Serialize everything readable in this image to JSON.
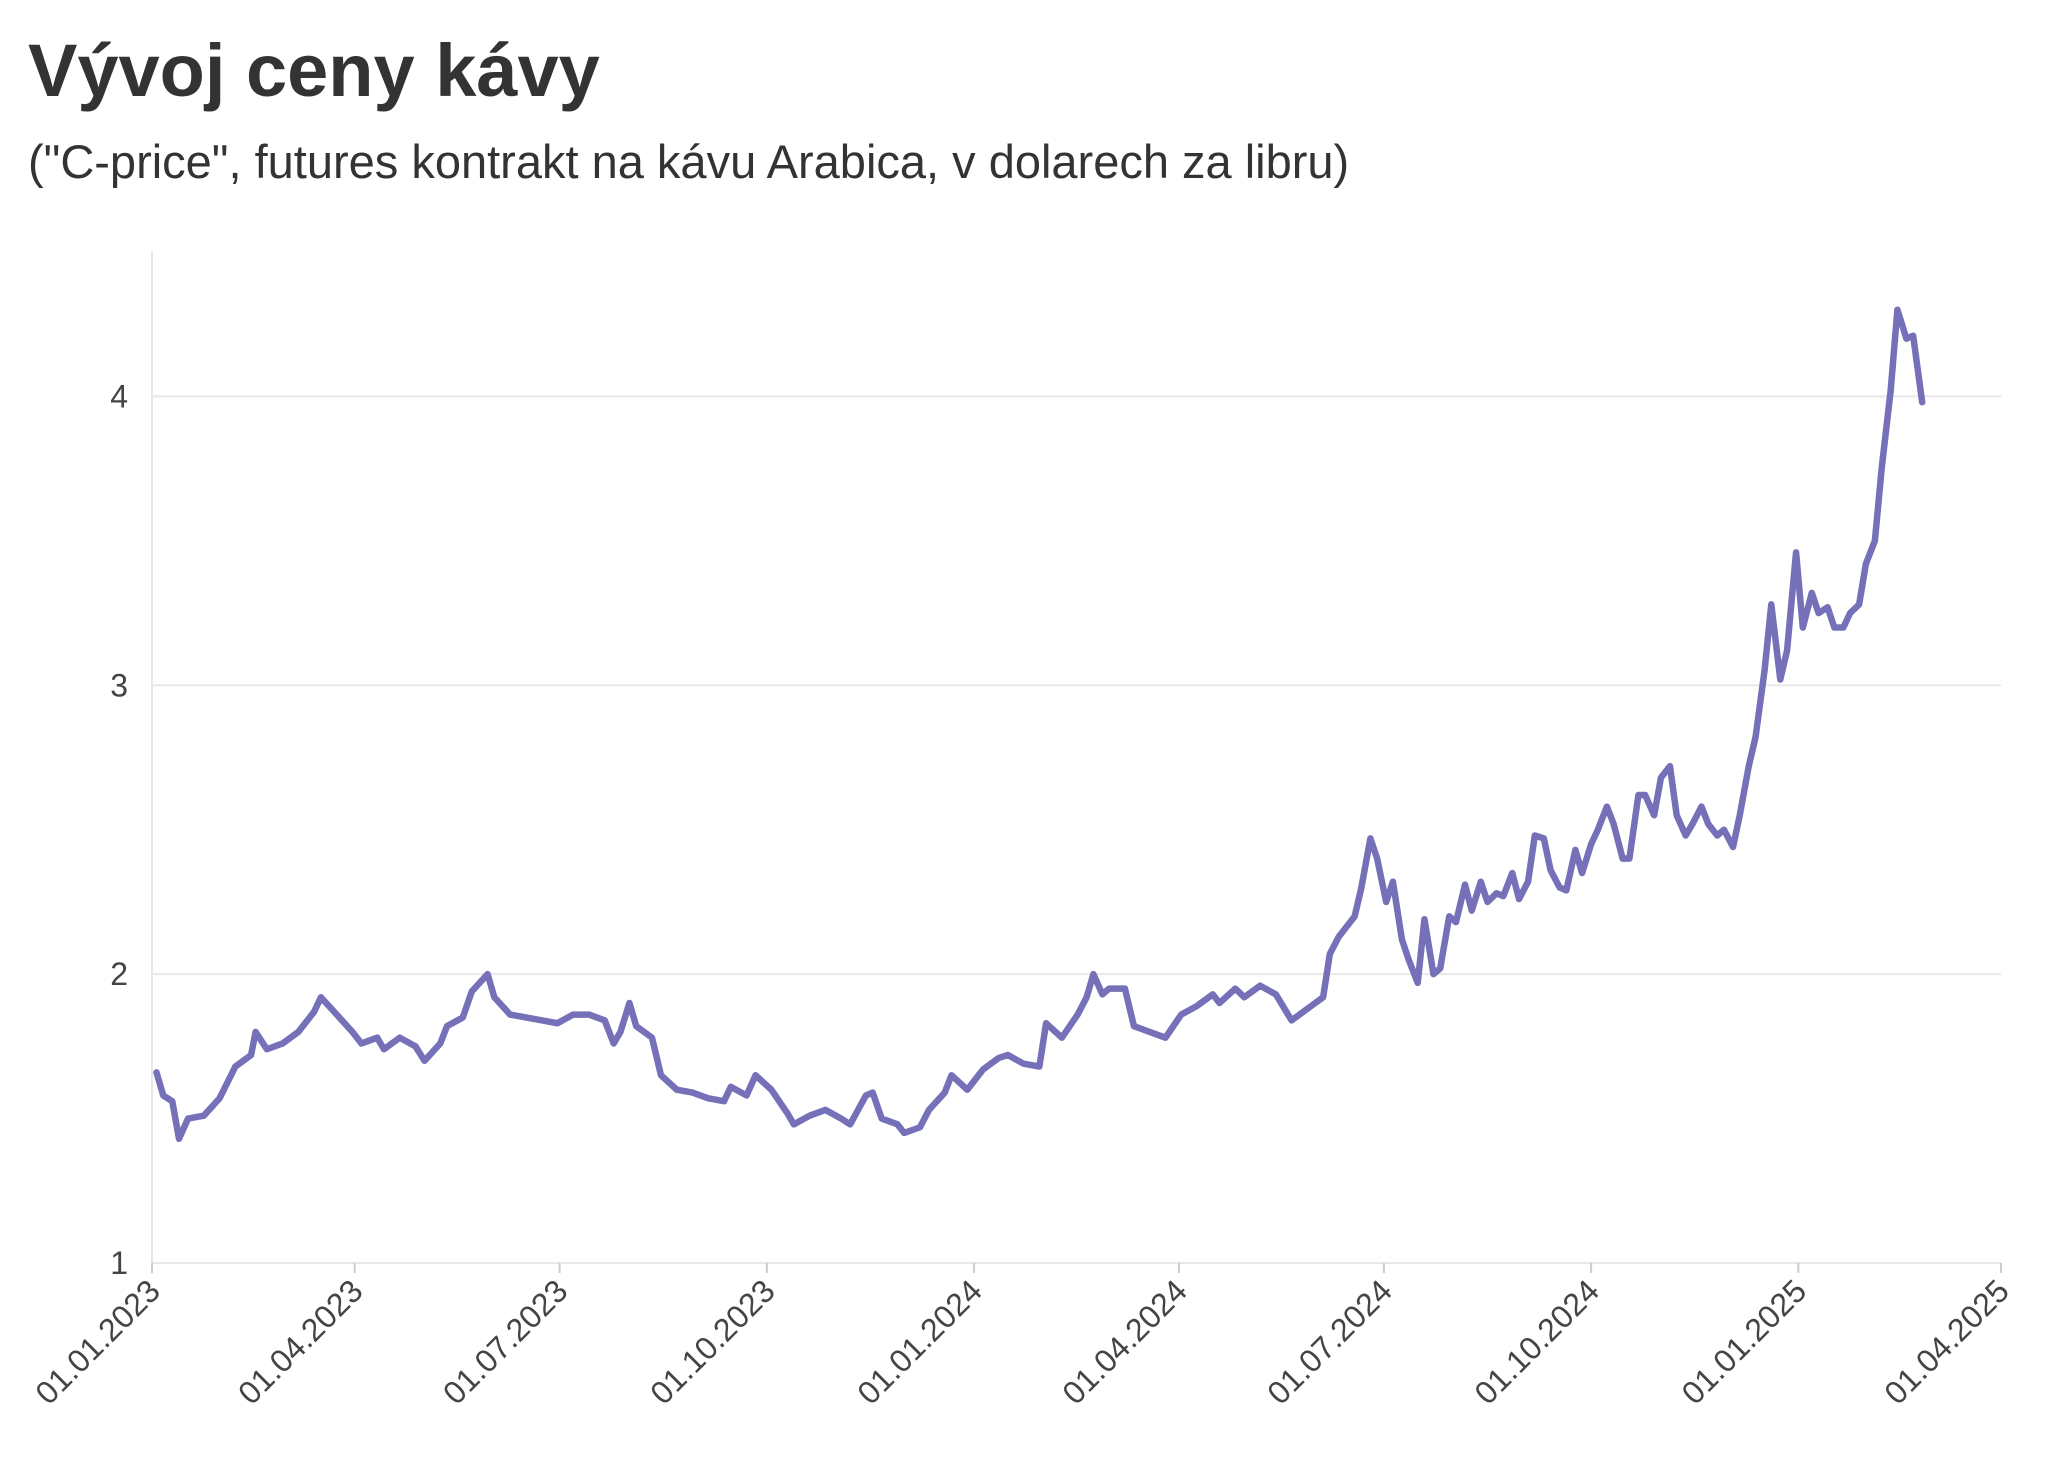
{
  "chart_data": {
    "type": "line",
    "title": "Vývoj ceny kávy",
    "subtitle": "(\"C-price\", futures kontrakt na kávu Arabica, v dolarech za libru)",
    "x": [
      "2023-01-03",
      "2023-01-06",
      "2023-01-10",
      "2023-01-13",
      "2023-01-17",
      "2023-01-24",
      "2023-01-31",
      "2023-02-07",
      "2023-02-14",
      "2023-02-16",
      "2023-02-21",
      "2023-02-28",
      "2023-03-07",
      "2023-03-14",
      "2023-03-17",
      "2023-03-24",
      "2023-03-31",
      "2023-04-04",
      "2023-04-11",
      "2023-04-14",
      "2023-04-21",
      "2023-04-28",
      "2023-05-02",
      "2023-05-09",
      "2023-05-12",
      "2023-05-19",
      "2023-05-23",
      "2023-05-30",
      "2023-06-02",
      "2023-06-09",
      "2023-06-16",
      "2023-06-23",
      "2023-06-30",
      "2023-07-07",
      "2023-07-14",
      "2023-07-21",
      "2023-07-25",
      "2023-07-28",
      "2023-08-01",
      "2023-08-04",
      "2023-08-11",
      "2023-08-15",
      "2023-08-22",
      "2023-08-29",
      "2023-09-05",
      "2023-09-12",
      "2023-09-15",
      "2023-09-22",
      "2023-09-26",
      "2023-10-03",
      "2023-10-10",
      "2023-10-13",
      "2023-10-20",
      "2023-10-27",
      "2023-11-03",
      "2023-11-07",
      "2023-11-14",
      "2023-11-17",
      "2023-11-21",
      "2023-11-28",
      "2023-12-01",
      "2023-12-08",
      "2023-12-12",
      "2023-12-19",
      "2023-12-22",
      "2023-12-29",
      "2024-01-05",
      "2024-01-12",
      "2024-01-16",
      "2024-01-23",
      "2024-01-30",
      "2024-02-02",
      "2024-02-09",
      "2024-02-16",
      "2024-02-20",
      "2024-02-23",
      "2024-02-27",
      "2024-03-01",
      "2024-03-08",
      "2024-03-12",
      "2024-03-19",
      "2024-03-26",
      "2024-04-02",
      "2024-04-09",
      "2024-04-16",
      "2024-04-19",
      "2024-04-26",
      "2024-04-30",
      "2024-05-07",
      "2024-05-14",
      "2024-05-21",
      "2024-05-28",
      "2024-06-04",
      "2024-06-07",
      "2024-06-11",
      "2024-06-18",
      "2024-06-21",
      "2024-06-25",
      "2024-06-28",
      "2024-07-02",
      "2024-07-05",
      "2024-07-09",
      "2024-07-12",
      "2024-07-16",
      "2024-07-19",
      "2024-07-23",
      "2024-07-26",
      "2024-07-30",
      "2024-08-02",
      "2024-08-06",
      "2024-08-09",
      "2024-08-13",
      "2024-08-16",
      "2024-08-20",
      "2024-08-23",
      "2024-08-27",
      "2024-08-30",
      "2024-09-03",
      "2024-09-06",
      "2024-09-10",
      "2024-09-13",
      "2024-09-17",
      "2024-09-20",
      "2024-09-24",
      "2024-09-27",
      "2024-10-01",
      "2024-10-04",
      "2024-10-08",
      "2024-10-11",
      "2024-10-15",
      "2024-10-18",
      "2024-10-22",
      "2024-10-25",
      "2024-10-29",
      "2024-11-01",
      "2024-11-05",
      "2024-11-08",
      "2024-11-12",
      "2024-11-15",
      "2024-11-19",
      "2024-11-22",
      "2024-11-26",
      "2024-11-29",
      "2024-12-03",
      "2024-12-06",
      "2024-12-10",
      "2024-12-13",
      "2024-12-17",
      "2024-12-20",
      "2024-12-24",
      "2024-12-27",
      "2024-12-31",
      "2025-01-03",
      "2025-01-07",
      "2025-01-10",
      "2025-01-14",
      "2025-01-17",
      "2025-01-21",
      "2025-01-24",
      "2025-01-28",
      "2025-01-31",
      "2025-02-04",
      "2025-02-07",
      "2025-02-11",
      "2025-02-14",
      "2025-02-18",
      "2025-02-21",
      "2025-02-25"
    ],
    "series": [
      {
        "color": "#7570b8",
        "values": [
          1.66,
          1.58,
          1.56,
          1.43,
          1.5,
          1.51,
          1.57,
          1.68,
          1.72,
          1.8,
          1.74,
          1.76,
          1.8,
          1.87,
          1.92,
          1.86,
          1.8,
          1.76,
          1.78,
          1.74,
          1.78,
          1.75,
          1.7,
          1.76,
          1.82,
          1.85,
          1.94,
          2.0,
          1.92,
          1.86,
          1.85,
          1.84,
          1.83,
          1.86,
          1.86,
          1.84,
          1.76,
          1.8,
          1.9,
          1.82,
          1.78,
          1.65,
          1.6,
          1.59,
          1.57,
          1.56,
          1.61,
          1.58,
          1.65,
          1.6,
          1.52,
          1.48,
          1.51,
          1.53,
          1.5,
          1.48,
          1.58,
          1.59,
          1.5,
          1.48,
          1.45,
          1.47,
          1.53,
          1.59,
          1.65,
          1.6,
          1.67,
          1.71,
          1.72,
          1.69,
          1.68,
          1.83,
          1.78,
          1.86,
          1.92,
          2.0,
          1.93,
          1.95,
          1.95,
          1.82,
          1.8,
          1.78,
          1.86,
          1.89,
          1.93,
          1.9,
          1.95,
          1.92,
          1.96,
          1.93,
          1.84,
          1.88,
          1.92,
          2.07,
          2.13,
          2.2,
          2.3,
          2.47,
          2.4,
          2.25,
          2.32,
          2.12,
          2.05,
          1.97,
          2.19,
          2.0,
          2.02,
          2.2,
          2.18,
          2.31,
          2.22,
          2.32,
          2.25,
          2.28,
          2.27,
          2.35,
          2.26,
          2.32,
          2.48,
          2.47,
          2.36,
          2.3,
          2.29,
          2.43,
          2.35,
          2.45,
          2.5,
          2.58,
          2.52,
          2.4,
          2.4,
          2.62,
          2.62,
          2.55,
          2.68,
          2.72,
          2.55,
          2.48,
          2.52,
          2.58,
          2.52,
          2.48,
          2.5,
          2.44,
          2.55,
          2.72,
          2.82,
          3.05,
          3.28,
          3.02,
          3.12,
          3.46,
          3.2,
          3.32,
          3.25,
          3.27,
          3.2,
          3.2,
          3.25,
          3.28,
          3.42,
          3.5,
          3.75,
          4.02,
          4.3,
          4.2,
          4.21,
          3.98
        ]
      }
    ],
    "xlim": [
      "2023-01-01",
      "2025-04-01"
    ],
    "xticks": [
      {
        "value": "2023-01-01",
        "label": "01.01.2023"
      },
      {
        "value": "2023-04-01",
        "label": "01.04.2023"
      },
      {
        "value": "2023-07-01",
        "label": "01.07.2023"
      },
      {
        "value": "2023-10-01",
        "label": "01.10.2023"
      },
      {
        "value": "2024-01-01",
        "label": "01.01.2024"
      },
      {
        "value": "2024-04-01",
        "label": "01.04.2024"
      },
      {
        "value": "2024-07-01",
        "label": "01.07.2024"
      },
      {
        "value": "2024-10-01",
        "label": "01.10.2024"
      },
      {
        "value": "2025-01-01",
        "label": "01.01.2025"
      },
      {
        "value": "2025-04-01",
        "label": "01.04.2025"
      }
    ],
    "ylim": [
      1,
      4.5
    ],
    "yticks": [
      1,
      2,
      3,
      4
    ],
    "grid": true
  }
}
